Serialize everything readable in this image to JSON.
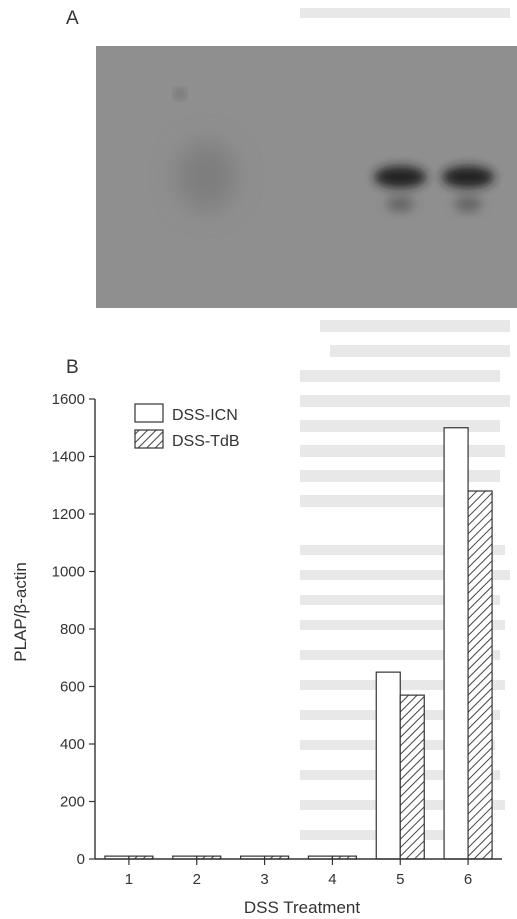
{
  "panel_a": {
    "label": "A",
    "blot_bands": [
      {
        "lane": 5,
        "intensity": 0.95
      },
      {
        "lane": 6,
        "intensity": 0.95
      }
    ]
  },
  "panel_b": {
    "label": "B"
  },
  "chart_data": {
    "type": "bar",
    "title": "",
    "xlabel": "DSS Treatment",
    "ylabel": "PLAP/β-actin",
    "categories": [
      "1",
      "2",
      "3",
      "4",
      "5",
      "6"
    ],
    "ylim": [
      0,
      1600
    ],
    "yticks": [
      0,
      200,
      400,
      600,
      800,
      1000,
      1200,
      1400,
      1600
    ],
    "legend_position": "top-left",
    "series": [
      {
        "name": "DSS-ICN",
        "fill": "open",
        "values": [
          10,
          10,
          10,
          10,
          650,
          1500
        ]
      },
      {
        "name": "DSS-TdB",
        "fill": "hatched",
        "values": [
          10,
          10,
          10,
          10,
          570,
          1280
        ]
      }
    ],
    "colors": {
      "bar_stroke": "#333333",
      "open_fill": "#ffffff",
      "hatch": "#444444",
      "blot_bg": "#8f8f8f",
      "band": "#2b2b2b"
    }
  }
}
